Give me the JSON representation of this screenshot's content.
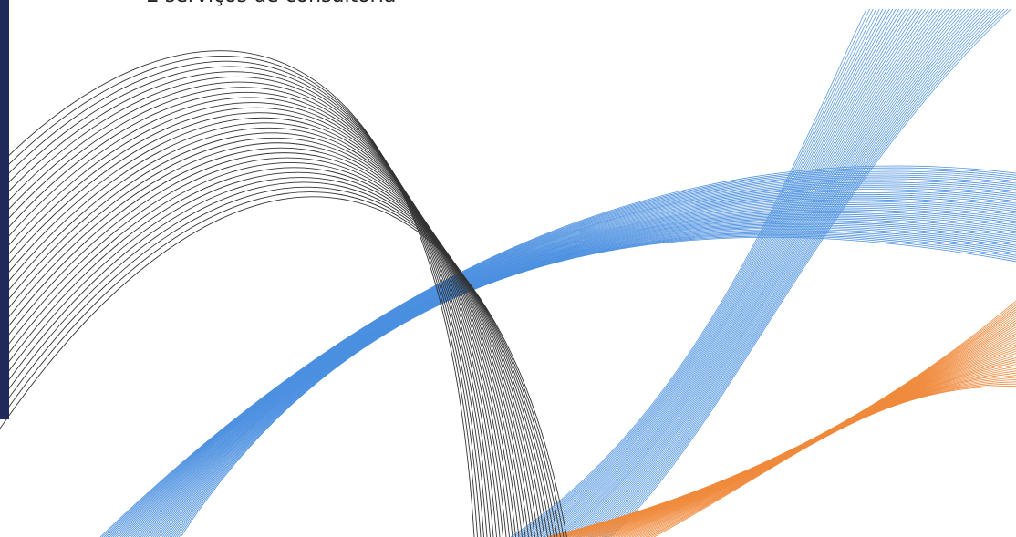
{
  "text": "E serviços de consultoria"
}
